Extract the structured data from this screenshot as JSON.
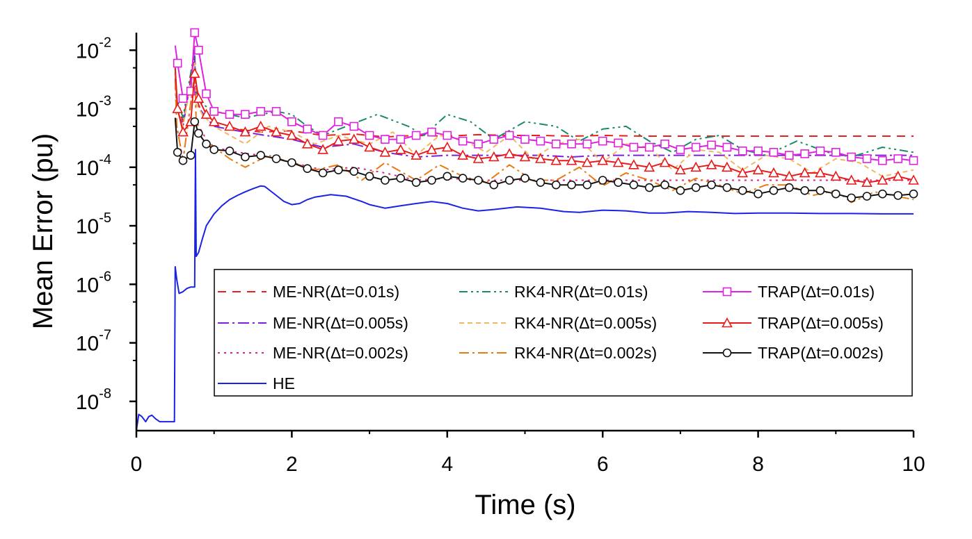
{
  "chart_data": {
    "type": "line",
    "xlabel": "Time (s)",
    "ylabel": "Mean Error (pu)",
    "xlim": [
      0,
      10
    ],
    "ylim_log10": [
      -8.5,
      -1.7
    ],
    "x_ticks": [
      0,
      2,
      4,
      6,
      8,
      10
    ],
    "y_ticks": [
      {
        "mant": "10",
        "exp": "-2",
        "value": 0.01
      },
      {
        "mant": "10",
        "exp": "-3",
        "value": 0.001
      },
      {
        "mant": "10",
        "exp": "-4",
        "value": 0.0001
      },
      {
        "mant": "10",
        "exp": "-5",
        "value": 1e-05
      },
      {
        "mant": "10",
        "exp": "-6",
        "value": 1e-06
      },
      {
        "mant": "10",
        "exp": "-7",
        "value": 1e-07
      },
      {
        "mant": "10",
        "exp": "-8",
        "value": 1e-08
      }
    ],
    "grid": false,
    "legend_position": "lower-right",
    "series": [
      {
        "name": "ME-NR(Δt=0.01s)",
        "color": "#e8201c",
        "dash": "12,9",
        "marker": "none",
        "x": [
          0.5,
          0.52,
          0.6,
          0.75,
          0.77,
          0.85,
          1.0,
          1.3,
          1.6,
          2.0,
          2.4,
          2.8,
          3.2,
          3.6,
          4.0,
          4.4,
          4.8,
          5.2,
          5.6,
          6.0,
          6.5,
          7.0,
          7.5,
          8.0,
          9.0,
          10.0
        ],
        "y": [
          0.004,
          0.0012,
          0.0006,
          0.008,
          0.0015,
          0.0008,
          0.0005,
          0.00045,
          0.0004,
          0.00042,
          0.00035,
          0.00037,
          0.00033,
          0.00035,
          0.00034,
          0.00036,
          0.00035,
          0.00035,
          0.00034,
          0.00035,
          0.00034,
          0.00034,
          0.00034,
          0.00034,
          0.00034,
          0.00034
        ]
      },
      {
        "name": "ME-NR(Δt=0.005s)",
        "color": "#7a20e0",
        "dash": "16,5,3,5",
        "marker": "none",
        "x": [
          0.5,
          0.52,
          0.6,
          0.75,
          0.77,
          0.9,
          1.0,
          1.3,
          1.6,
          2.0,
          2.4,
          2.8,
          3.2,
          3.6,
          4.0,
          4.4,
          4.8,
          5.2,
          5.6,
          6.0,
          6.5,
          7.0,
          7.5,
          8.0,
          9.0,
          10.0
        ],
        "y": [
          0.004,
          0.001,
          0.0005,
          0.008,
          0.0012,
          0.0007,
          0.0005,
          0.00042,
          0.00036,
          0.0003,
          0.00022,
          0.00025,
          0.00018,
          0.00015,
          0.00016,
          0.00016,
          0.00016,
          0.00016,
          0.00015,
          0.00016,
          0.00016,
          0.00016,
          0.00016,
          0.00016,
          0.00016,
          0.00016
        ]
      },
      {
        "name": "ME-NR(Δt=0.002s)",
        "color": "#e0208a",
        "dash": "3,6",
        "marker": "none",
        "x": [
          0.5,
          0.52,
          0.6,
          0.75,
          0.77,
          0.9,
          1.0,
          1.3,
          1.6,
          2.0,
          2.4,
          2.8,
          3.2,
          3.6,
          4.0,
          4.4,
          4.8,
          5.2,
          5.6,
          6.0,
          6.5,
          7.0,
          7.5,
          8.0,
          9.0,
          10.0
        ],
        "y": [
          0.003,
          0.0005,
          0.00013,
          0.004,
          0.0006,
          0.0003,
          0.00022,
          0.00018,
          0.00016,
          0.00012,
          9e-05,
          0.0001,
          8e-05,
          6e-05,
          6.5e-05,
          6e-05,
          6e-05,
          6e-05,
          6e-05,
          6e-05,
          6e-05,
          6e-05,
          6e-05,
          6e-05,
          6e-05,
          6e-05
        ]
      },
      {
        "name": "RK4-NR(Δt=0.01s)",
        "color": "#1a8a6a",
        "dash": "12,5,3,5,3,5",
        "marker": "none",
        "x": [
          0.5,
          0.52,
          0.6,
          0.75,
          0.77,
          0.85,
          1.0,
          1.4,
          1.8,
          2.0,
          2.2,
          2.4,
          2.7,
          3.1,
          3.5,
          3.7,
          4.0,
          4.3,
          4.6,
          5.0,
          5.4,
          5.7,
          6.0,
          6.3,
          6.6,
          6.9,
          7.2,
          7.5,
          7.8,
          8.1,
          8.5,
          8.9,
          9.2,
          9.6,
          10.0
        ],
        "y": [
          0.005,
          0.0015,
          0.0007,
          0.01,
          0.002,
          0.0012,
          0.0009,
          0.0007,
          0.0009,
          0.0008,
          0.0005,
          0.00035,
          0.0005,
          0.0008,
          0.0005,
          0.00035,
          0.0008,
          0.0006,
          0.0003,
          0.0006,
          0.0005,
          0.00028,
          0.00045,
          0.0005,
          0.00028,
          0.00018,
          0.0003,
          0.00035,
          0.0002,
          0.00016,
          0.00028,
          0.00018,
          0.00015,
          0.00022,
          0.00018
        ]
      },
      {
        "name": "RK4-NR(Δt=0.005s)",
        "color": "#f0b860",
        "dash": "7,5",
        "marker": "none",
        "x": [
          0.5,
          0.52,
          0.6,
          0.75,
          0.77,
          0.85,
          1.0,
          1.4,
          1.7,
          2.0,
          2.3,
          2.6,
          3.0,
          3.3,
          3.6,
          3.9,
          4.2,
          4.5,
          4.8,
          5.1,
          5.4,
          5.7,
          6.0,
          6.3,
          6.6,
          6.9,
          7.2,
          7.5,
          7.8,
          8.1,
          8.4,
          8.7,
          9.0,
          9.3,
          9.6,
          10.0
        ],
        "y": [
          0.004,
          0.001,
          0.0005,
          0.006,
          0.0012,
          0.0008,
          0.0005,
          0.00025,
          0.0005,
          0.0004,
          0.00025,
          0.00035,
          0.00025,
          0.0004,
          0.00016,
          0.00035,
          0.0003,
          0.00018,
          0.00035,
          0.00014,
          0.00025,
          0.0003,
          0.00012,
          0.00025,
          0.00022,
          9e-05,
          0.0002,
          0.00018,
          9e-05,
          0.00016,
          0.00014,
          8e-05,
          0.00014,
          0.00012,
          7e-05,
          9e-05
        ]
      },
      {
        "name": "RK4-NR(Δt=0.002s)",
        "color": "#e87a10",
        "dash": "14,5,3,5",
        "marker": "none",
        "x": [
          0.5,
          0.52,
          0.6,
          0.75,
          0.77,
          0.85,
          1.0,
          1.2,
          1.4,
          1.7,
          2.0,
          2.3,
          2.6,
          2.9,
          3.2,
          3.6,
          3.9,
          4.2,
          4.5,
          4.8,
          5.1,
          5.4,
          5.7,
          6.0,
          6.3,
          6.6,
          6.9,
          7.2,
          7.5,
          7.8,
          8.1,
          8.4,
          8.7,
          9.0,
          9.2,
          9.5,
          10.0
        ],
        "y": [
          0.003,
          0.0005,
          0.00013,
          0.004,
          0.0006,
          0.0003,
          0.00022,
          0.00014,
          0.0001,
          0.00016,
          0.00012,
          9e-05,
          0.00011,
          6e-05,
          0.00012,
          6e-05,
          0.00011,
          7e-05,
          5.5e-05,
          0.00011,
          6e-05,
          6e-05,
          0.0001,
          4.8e-05,
          8e-05,
          6e-05,
          4e-05,
          6.5e-05,
          5e-05,
          3.5e-05,
          5e-05,
          5e-05,
          3.3e-05,
          4e-05,
          2.5e-05,
          3.8e-05,
          2.8e-05
        ]
      },
      {
        "name": "TRAP(Δt=0.01s)",
        "color": "#e020e0",
        "dash": "",
        "marker": "square",
        "x": [
          0.5,
          0.53,
          0.6,
          0.7,
          0.75,
          0.8,
          0.9,
          1.0,
          1.2,
          1.4,
          1.6,
          1.8,
          2.0,
          2.2,
          2.4,
          2.6,
          2.8,
          3.0,
          3.2,
          3.4,
          3.6,
          3.8,
          4.0,
          4.2,
          4.4,
          4.6,
          4.8,
          5.0,
          5.2,
          5.4,
          5.6,
          5.8,
          6.0,
          6.2,
          6.4,
          6.6,
          6.8,
          7.0,
          7.2,
          7.4,
          7.6,
          7.8,
          8.0,
          8.2,
          8.4,
          8.6,
          8.8,
          9.0,
          9.2,
          9.4,
          9.6,
          9.8,
          10.0
        ],
        "y": [
          0.012,
          0.006,
          0.0015,
          0.002,
          0.022,
          0.01,
          0.0018,
          0.0009,
          0.0008,
          0.0008,
          0.0009,
          0.0009,
          0.0006,
          0.00045,
          0.00035,
          0.0006,
          0.0005,
          0.00035,
          0.0003,
          0.0003,
          0.00035,
          0.0004,
          0.00035,
          0.00028,
          0.00025,
          0.0003,
          0.00035,
          0.0003,
          0.00028,
          0.00025,
          0.00025,
          0.00025,
          0.00028,
          0.00026,
          0.00022,
          0.00022,
          0.00025,
          0.0002,
          0.00022,
          0.00024,
          0.00022,
          0.00019,
          0.00019,
          0.00018,
          0.00016,
          0.00017,
          0.00019,
          0.00018,
          0.00015,
          0.00014,
          0.00013,
          0.00014,
          0.00013
        ]
      },
      {
        "name": "TRAP(Δt=0.005s)",
        "color": "#e81a1a",
        "dash": "",
        "marker": "triangle",
        "x": [
          0.5,
          0.53,
          0.6,
          0.7,
          0.75,
          0.8,
          0.9,
          1.0,
          1.2,
          1.4,
          1.6,
          1.8,
          2.0,
          2.2,
          2.4,
          2.6,
          2.8,
          3.0,
          3.2,
          3.4,
          3.6,
          3.8,
          4.0,
          4.2,
          4.4,
          4.6,
          4.8,
          5.0,
          5.2,
          5.4,
          5.6,
          5.8,
          6.0,
          6.2,
          6.4,
          6.6,
          6.8,
          7.0,
          7.2,
          7.4,
          7.6,
          7.8,
          8.0,
          8.2,
          8.4,
          8.6,
          8.8,
          9.0,
          9.2,
          9.4,
          9.6,
          9.8,
          10.0
        ],
        "y": [
          0.005,
          0.001,
          0.0004,
          0.0006,
          0.004,
          0.0015,
          0.0008,
          0.0006,
          0.0005,
          0.0004,
          0.0005,
          0.0004,
          0.00035,
          0.00025,
          0.0002,
          0.00028,
          0.0003,
          0.00022,
          0.00018,
          0.0002,
          0.00016,
          0.0002,
          0.00022,
          0.00016,
          0.00014,
          0.00015,
          0.00017,
          0.00015,
          0.00014,
          0.00013,
          0.00013,
          0.00012,
          0.00013,
          0.00012,
          0.00011,
          0.0001,
          0.00012,
          9e-05,
          0.0001,
          0.00011,
          0.0001,
          8e-05,
          9e-05,
          8e-05,
          7e-05,
          8e-05,
          8e-05,
          7e-05,
          6e-05,
          5.5e-05,
          6e-05,
          7e-05,
          6e-05
        ]
      },
      {
        "name": "TRAP(Δt=0.002s)",
        "color": "#111111",
        "dash": "",
        "marker": "circle",
        "x": [
          0.5,
          0.53,
          0.6,
          0.7,
          0.75,
          0.8,
          0.9,
          1.0,
          1.2,
          1.4,
          1.6,
          1.8,
          2.0,
          2.2,
          2.4,
          2.6,
          2.8,
          3.0,
          3.2,
          3.4,
          3.6,
          3.8,
          4.0,
          4.2,
          4.4,
          4.6,
          4.8,
          5.0,
          5.2,
          5.4,
          5.6,
          5.8,
          6.0,
          6.2,
          6.4,
          6.6,
          6.8,
          7.0,
          7.2,
          7.4,
          7.6,
          7.8,
          8.0,
          8.2,
          8.4,
          8.6,
          8.8,
          9.0,
          9.2,
          9.4,
          9.6,
          9.8,
          10.0
        ],
        "y": [
          0.0007,
          0.00018,
          0.00013,
          0.00016,
          0.0006,
          0.00038,
          0.00025,
          0.0002,
          0.00019,
          0.00015,
          0.00016,
          0.00014,
          0.00012,
          9.5e-05,
          8e-05,
          9e-05,
          8.5e-05,
          7e-05,
          6e-05,
          6.5e-05,
          5.5e-05,
          6e-05,
          7e-05,
          6.5e-05,
          6e-05,
          5e-05,
          6e-05,
          6.5e-05,
          5.5e-05,
          5e-05,
          5e-05,
          5e-05,
          6e-05,
          5.5e-05,
          5e-05,
          4.5e-05,
          5e-05,
          4e-05,
          4.5e-05,
          5e-05,
          4.5e-05,
          4e-05,
          3.5e-05,
          4e-05,
          4.5e-05,
          4e-05,
          4e-05,
          3.5e-05,
          3e-05,
          3.2e-05,
          3.5e-05,
          3.3e-05,
          3.5e-05
        ]
      },
      {
        "name": "HE",
        "color": "#1a22e6",
        "dash": "",
        "marker": "none",
        "x": [
          0,
          0.03,
          0.07,
          0.12,
          0.16,
          0.2,
          0.25,
          0.3,
          0.35,
          0.4,
          0.45,
          0.49,
          0.5,
          0.52,
          0.55,
          0.6,
          0.65,
          0.7,
          0.75,
          0.76,
          0.77,
          0.8,
          0.85,
          0.9,
          1.0,
          1.1,
          1.2,
          1.3,
          1.4,
          1.5,
          1.6,
          1.65,
          1.7,
          1.8,
          1.9,
          2.0,
          2.1,
          2.2,
          2.3,
          2.5,
          2.7,
          2.9,
          3.0,
          3.2,
          3.4,
          3.6,
          3.8,
          4.0,
          4.2,
          4.4,
          4.6,
          4.9,
          5.2,
          5.5,
          5.7,
          6.0,
          6.3,
          6.6,
          6.8,
          7.1,
          7.4,
          7.7,
          8.0,
          8.4,
          8.8,
          9.2,
          9.6,
          10.0
        ],
        "y": [
          3e-09,
          6e-09,
          5.5e-09,
          4.5e-09,
          5.5e-09,
          5.8e-09,
          5e-09,
          4.5e-09,
          4.5e-09,
          4.5e-09,
          4.5e-09,
          4.5e-09,
          2e-06,
          1.2e-06,
          7e-07,
          7.5e-07,
          8.5e-07,
          9e-07,
          9e-07,
          0.0002,
          3e-06,
          3.5e-06,
          6e-06,
          1e-05,
          1.6e-05,
          2.2e-05,
          2.8e-05,
          3.3e-05,
          3.8e-05,
          4.3e-05,
          4.8e-05,
          4.7e-05,
          4.2e-05,
          3.3e-05,
          2.6e-05,
          2.3e-05,
          2.4e-05,
          2.8e-05,
          3.1e-05,
          3.4e-05,
          3.2e-05,
          2.6e-05,
          2.3e-05,
          2e-05,
          2.2e-05,
          2.4e-05,
          2.6e-05,
          2.4e-05,
          2e-05,
          1.8e-05,
          1.9e-05,
          2.1e-05,
          2e-05,
          1.75e-05,
          1.7e-05,
          1.85e-05,
          1.8e-05,
          1.65e-05,
          1.65e-05,
          1.75e-05,
          1.7e-05,
          1.62e-05,
          1.65e-05,
          1.65e-05,
          1.62e-05,
          1.62e-05,
          1.6e-05,
          1.6e-05
        ]
      }
    ],
    "legend_entries": [
      {
        "label": "ME-NR(Δt=0.01s)",
        "series": 0
      },
      {
        "label": "RK4-NR(Δt=0.01s)",
        "series": 3
      },
      {
        "label": "TRAP(Δt=0.01s)",
        "series": 6
      },
      {
        "label": "ME-NR(Δt=0.005s)",
        "series": 1
      },
      {
        "label": "RK4-NR(Δt=0.005s)",
        "series": 4
      },
      {
        "label": "TRAP(Δt=0.005s)",
        "series": 7
      },
      {
        "label": "ME-NR(Δt=0.002s)",
        "series": 2
      },
      {
        "label": "RK4-NR(Δt=0.002s)",
        "series": 5
      },
      {
        "label": "TRAP(Δt=0.002s)",
        "series": 8
      },
      {
        "label": "HE",
        "series": 9
      }
    ]
  }
}
